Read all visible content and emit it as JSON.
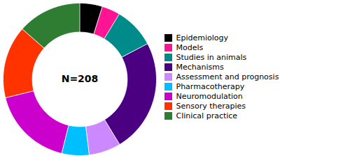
{
  "chart_data": {
    "type": "donut",
    "categories": [
      "Epidemiology",
      "Models",
      "Studies in animals",
      "Mechanisms",
      "Assessment and prognosis",
      "Pharmacotherapy",
      "Neuromodulation",
      "Sensory therapies",
      "Clinical practice"
    ],
    "values": [
      10,
      8,
      18,
      50,
      14,
      12,
      36,
      32,
      28
    ],
    "colors": [
      "#000000",
      "#FF1493",
      "#008B8B",
      "#4B0082",
      "#CC88FF",
      "#00BFFF",
      "#CC00CC",
      "#FF3300",
      "#2E7D32"
    ],
    "annotations": [
      "N=208"
    ],
    "legend": "right"
  }
}
